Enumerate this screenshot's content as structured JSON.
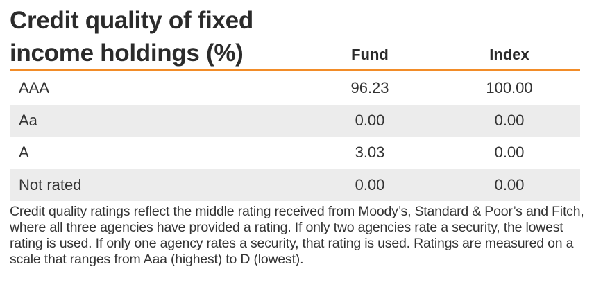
{
  "title": "Credit quality of fixed income holdings (%)",
  "columns": {
    "fund": "Fund",
    "index": "Index"
  },
  "rows": [
    {
      "label": "AAA",
      "fund": "96.23",
      "index": "100.00"
    },
    {
      "label": "Aa",
      "fund": "0.00",
      "index": "0.00"
    },
    {
      "label": "A",
      "fund": "3.03",
      "index": "0.00"
    },
    {
      "label": "Not rated",
      "fund": "0.00",
      "index": "0.00"
    }
  ],
  "footnote": "Credit quality ratings reflect the middle rating received from Moody’s, Standard & Poor’s and Fitch, where all three agencies have provided a rating. If only two agencies rate a security, the lowest rating is used. If only one agency rates a security, that rating is used. Ratings are measured on a scale that ranges from Aaa (highest) to D (lowest).",
  "colors": {
    "accent_rule": "#f28c28",
    "shaded_row": "#ececec"
  }
}
